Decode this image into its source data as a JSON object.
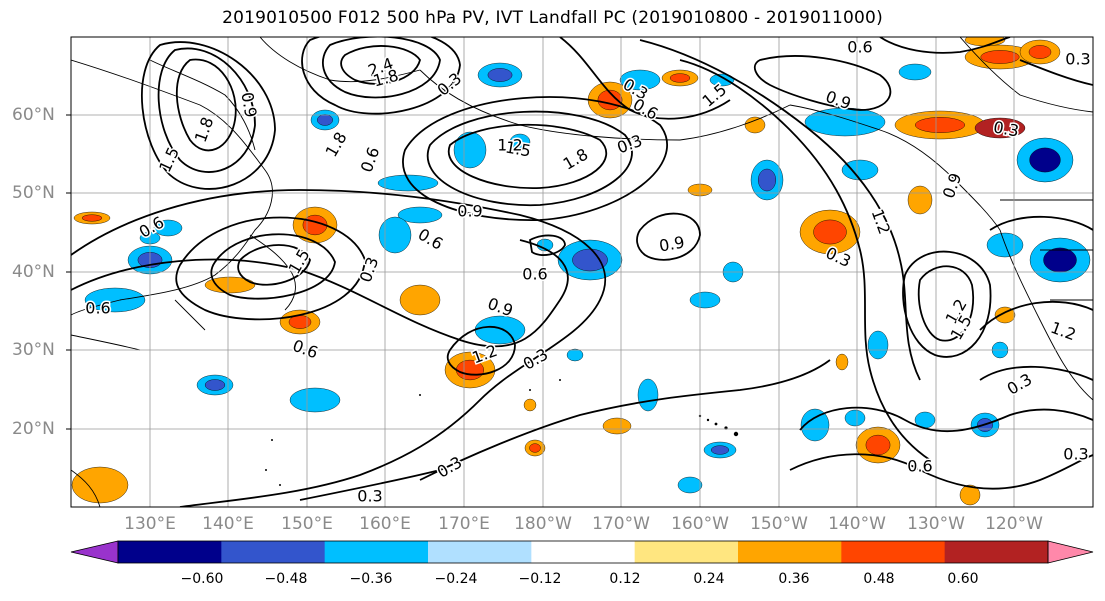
{
  "title": "2019010500 F012 500 hPa PV, IVT Landfall PC (2019010800 - 2019011000)",
  "lat_labels": [
    "60°N",
    "50°N",
    "40°N",
    "30°N",
    "20°N"
  ],
  "lon_labels": [
    "130°E",
    "140°E",
    "150°E",
    "160°E",
    "170°E",
    "180°W",
    "170°W",
    "160°W",
    "150°W",
    "140°W",
    "130°W",
    "120°W"
  ],
  "colorbar": {
    "ticks": [
      "−0.60",
      "−0.48",
      "−0.36",
      "−0.24",
      "−0.12",
      "0.12",
      "0.24",
      "0.36",
      "0.48",
      "0.60"
    ],
    "colors": [
      "#9933cc",
      "#00008b",
      "#3355cc",
      "#00bfff",
      "#b0e0ff",
      "#ffffff",
      "#ffe680",
      "#ffa500",
      "#ff4500",
      "#b22222",
      "#ff88aa"
    ]
  },
  "contour_labels": [
    "2.4",
    "1.8",
    "0.3",
    "0.9",
    "1.8",
    "1.5",
    "1.2",
    "1.8",
    "1.5",
    "1.8",
    "0.6",
    "0.3",
    "1.5",
    "0.6",
    "0.3",
    "0.9",
    "0.6",
    "0.6",
    "1.5",
    "0.6",
    "0.3",
    "0.6",
    "0.9",
    "0.3",
    "1.2",
    "0.6",
    "0.9",
    "0.6",
    "0.9",
    "0.3",
    "1.2",
    "0.3",
    "0.3",
    "0.9",
    "1.2",
    "1.5",
    "1.2",
    "0.3",
    "0.3",
    "0.6",
    "0.3",
    "0.3"
  ],
  "colors": {
    "land_outline": "#000000",
    "grid": "#999999",
    "contour": "#000000"
  }
}
